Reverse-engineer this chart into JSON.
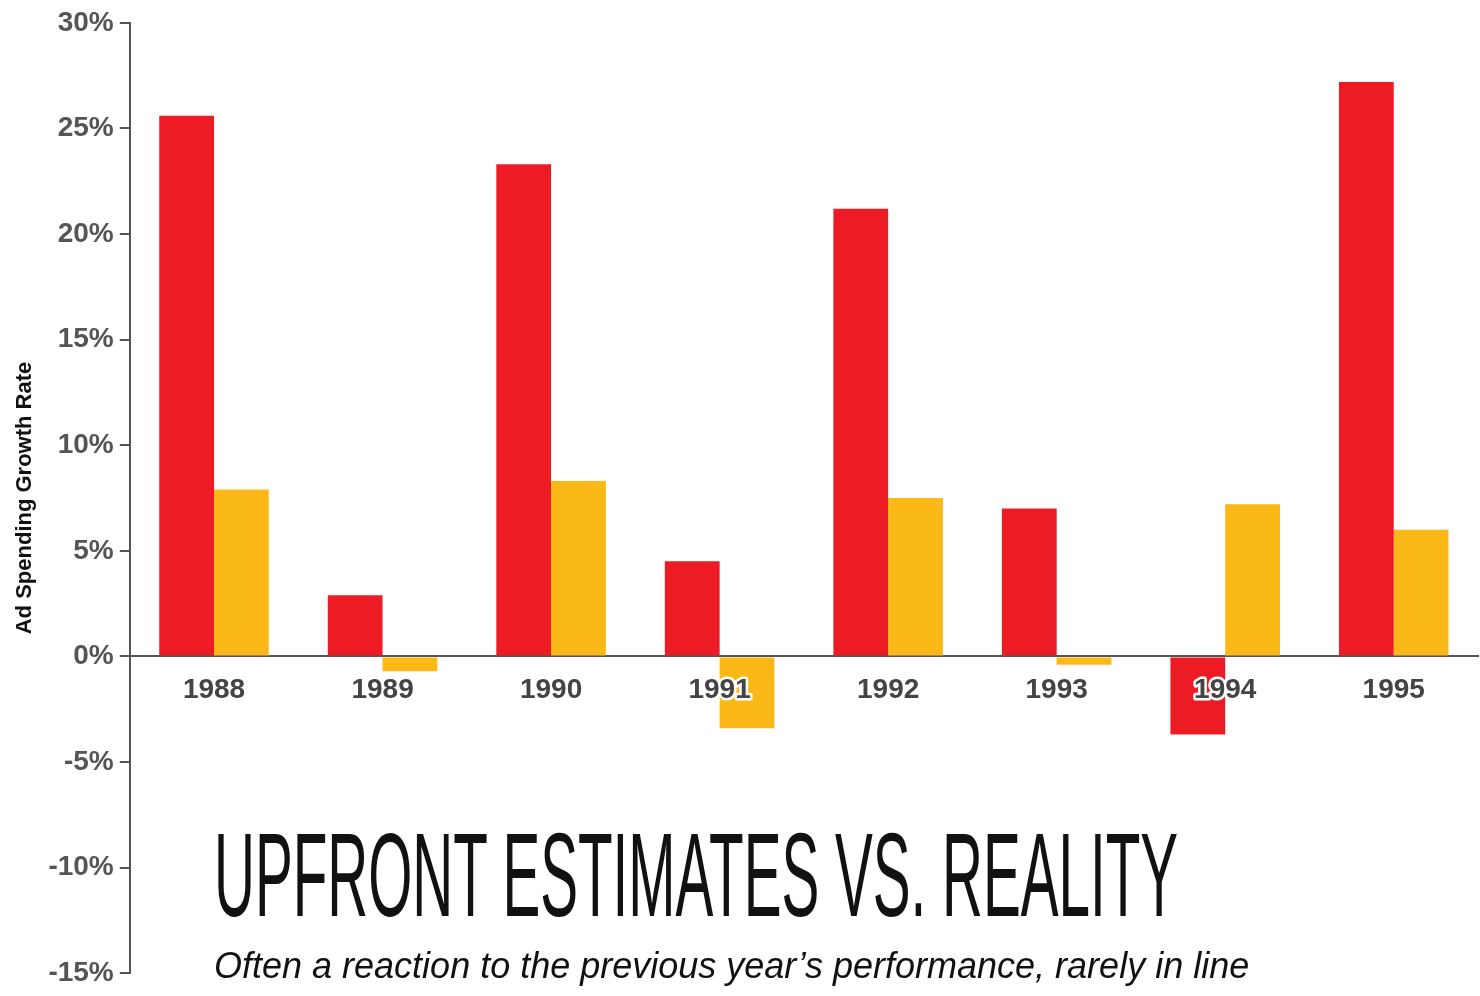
{
  "chart_data": {
    "type": "bar",
    "title": "UPFRONT ESTIMATES VS. REALITY",
    "subtitle": "Often a reaction to the previous year’s performance, rarely in line",
    "ylabel": "Ad Spending Growth Rate",
    "categories": [
      "1988",
      "1989",
      "1990",
      "1991",
      "1992",
      "1993",
      "1994",
      "1995"
    ],
    "series": [
      {
        "color": "#ed1c24",
        "values": [
          25.6,
          2.9,
          23.3,
          4.5,
          21.2,
          7.0,
          -3.7,
          27.2
        ]
      },
      {
        "color": "#fbb917",
        "values": [
          7.9,
          -0.7,
          8.3,
          -3.4,
          7.5,
          -0.4,
          7.2,
          6.0
        ]
      }
    ],
    "ylim": [
      -15,
      30
    ],
    "yticks": [
      {
        "value": -15,
        "label": "-15%"
      },
      {
        "value": -10,
        "label": "-10%"
      },
      {
        "value": -5,
        "label": "-5%"
      },
      {
        "value": 0,
        "label": "0%"
      },
      {
        "value": 5,
        "label": "5%"
      },
      {
        "value": 10,
        "label": "10%"
      },
      {
        "value": 15,
        "label": "15%"
      },
      {
        "value": 20,
        "label": "20%"
      },
      {
        "value": 25,
        "label": "25%"
      },
      {
        "value": 30,
        "label": "30%"
      }
    ],
    "grid": false,
    "legend": false
  }
}
